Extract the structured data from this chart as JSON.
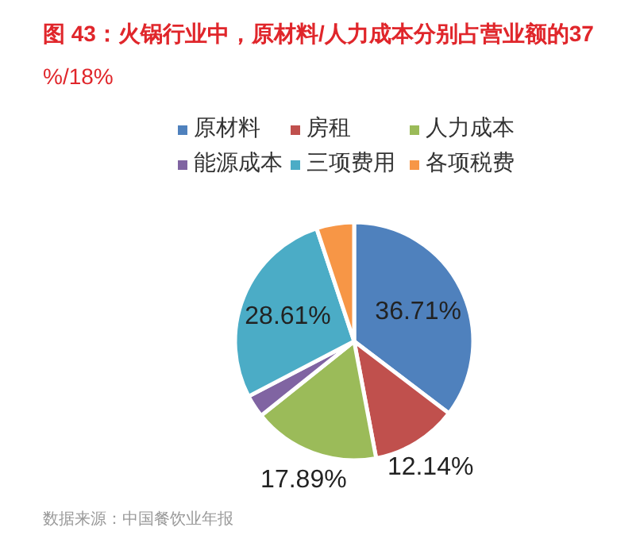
{
  "chart_data": {
    "type": "pie",
    "title": "图 43：火锅行业中，原材料/人力成本分别占营业额的37%/18%",
    "categories": [
      "原材料",
      "房租",
      "人力成本",
      "能源成本",
      "三项费用",
      "各项税费"
    ],
    "values": [
      36.71,
      12.14,
      17.89,
      3.2,
      28.61,
      5.3
    ],
    "colors": [
      "#4f81bd",
      "#c0504d",
      "#9bbb59",
      "#8064a2",
      "#4bacc6",
      "#f79646"
    ],
    "value_labels": [
      "36.71%",
      "12.14%",
      "17.89%",
      null,
      "28.61%",
      null
    ],
    "legend": "top",
    "annotations": [
      "数据来源：中国餐饮业年报"
    ]
  }
}
